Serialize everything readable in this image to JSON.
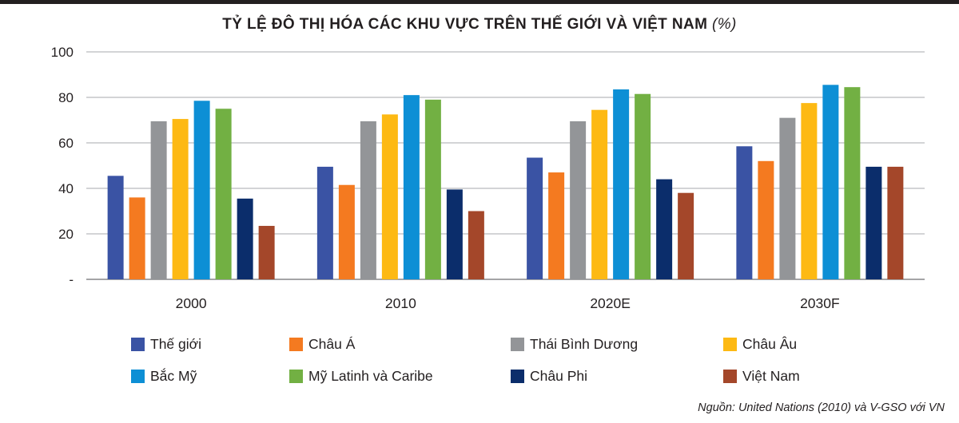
{
  "title": "TỶ LỆ ĐÔ THỊ HÓA CÁC KHU VỰC TRÊN THẾ GIỚI VÀ VIỆT NAM",
  "title_unit": "(%)",
  "source": "Nguồn: United Nations (2010) và V-GSO với VN",
  "chart_data": {
    "type": "bar",
    "title": "TỶ LỆ ĐÔ THỊ HÓA CÁC KHU VỰC TRÊN THẾ GIỚI VÀ VIỆT NAM (%)",
    "categories": [
      "2000",
      "2010",
      "2020E",
      "2030F"
    ],
    "ylim": [
      0,
      100
    ],
    "yticks": [
      0,
      20,
      40,
      60,
      80,
      100
    ],
    "ytick_labels": [
      "-",
      "20",
      "40",
      "60",
      "80",
      "100"
    ],
    "grid": true,
    "legend_position": "bottom",
    "series": [
      {
        "name": "Thế giới",
        "color": "#3a53a4",
        "values": [
          45.5,
          49.5,
          53.5,
          58.5
        ]
      },
      {
        "name": "Châu Á",
        "color": "#f47a20",
        "values": [
          36,
          41.5,
          47,
          52
        ]
      },
      {
        "name": "Thái Bình Dương",
        "color": "#939598",
        "values": [
          69.5,
          69.5,
          69.5,
          71
        ]
      },
      {
        "name": "Châu Âu",
        "color": "#fdb913",
        "values": [
          70.5,
          72.5,
          74.5,
          77.5
        ]
      },
      {
        "name": "Bắc Mỹ",
        "color": "#0d8fd5",
        "values": [
          78.5,
          81,
          83.5,
          85.5
        ]
      },
      {
        "name": "Mỹ Latinh và Caribe",
        "color": "#72b043",
        "values": [
          75,
          79,
          81.5,
          84.5
        ]
      },
      {
        "name": "Châu Phi",
        "color": "#0b2d6b",
        "values": [
          35.5,
          39.5,
          44,
          49.5
        ]
      },
      {
        "name": "Việt Nam",
        "color": "#a4472a",
        "values": [
          23.5,
          30,
          38,
          49.5
        ]
      }
    ]
  }
}
